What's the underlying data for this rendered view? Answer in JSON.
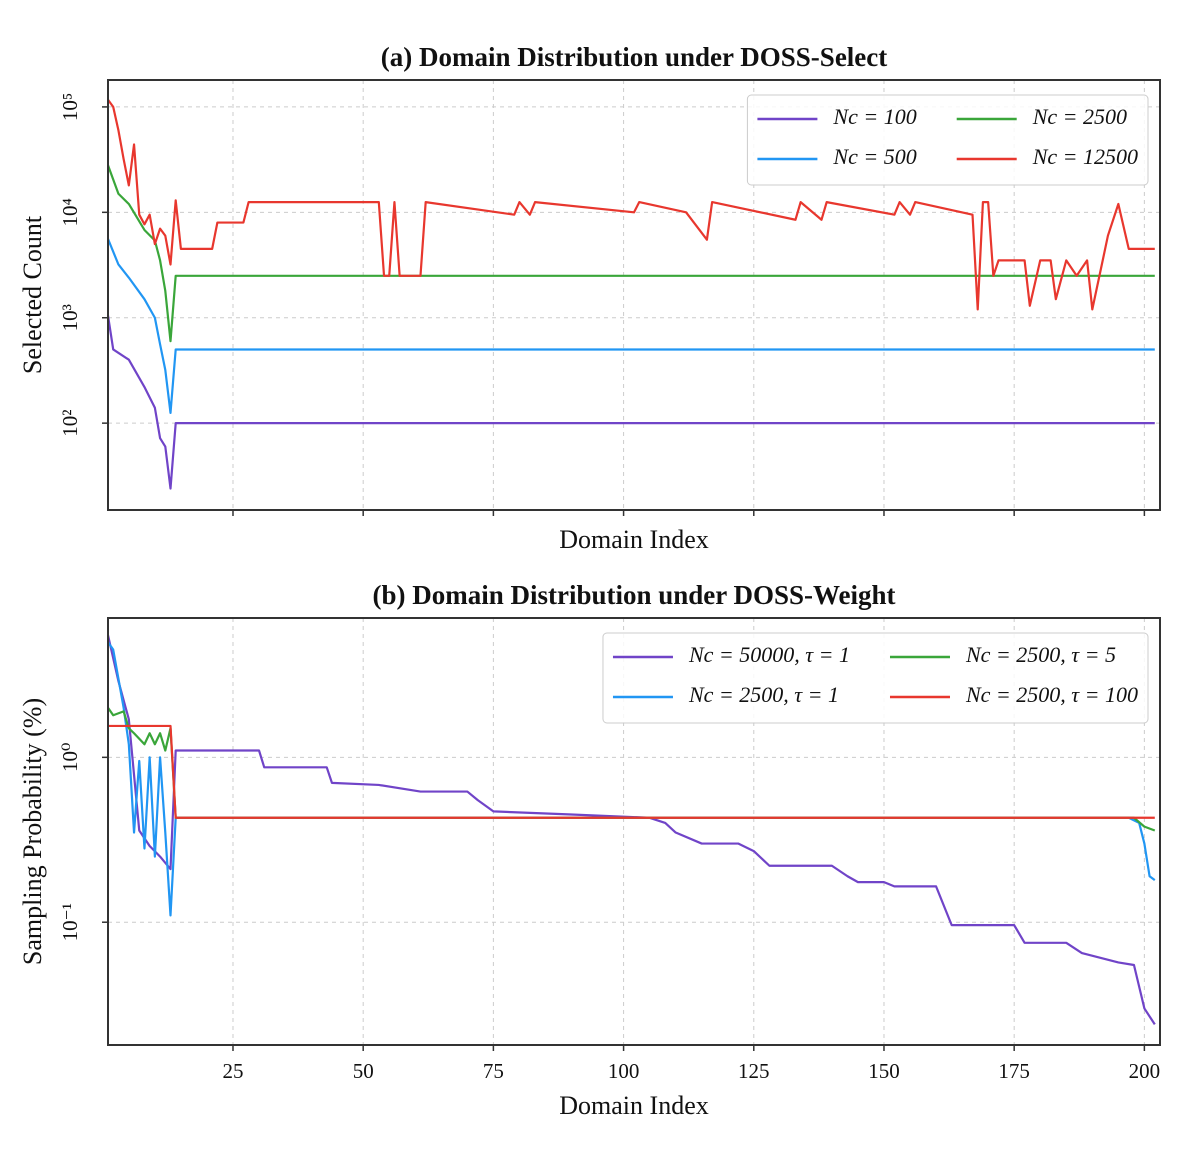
{
  "chart_data": [
    {
      "type": "line",
      "title": "(a) Domain Distribution under DOSS-Select",
      "xlabel": "Domain Index",
      "ylabel": "Selected Count",
      "yscale": "log",
      "grid": true,
      "legend": "upper right",
      "legend_columns": 2,
      "xlim": [
        1,
        203
      ],
      "ylim": [
        15,
        180000
      ],
      "yticks": [
        {
          "value": 100,
          "label": "10²"
        },
        {
          "value": 1000,
          "label": "10³"
        },
        {
          "value": 10000,
          "label": "10⁴"
        },
        {
          "value": 100000,
          "label": "10⁵"
        }
      ],
      "series": [
        {
          "name": "Nc = 100",
          "color": "#7044c8",
          "x": [
            1,
            2,
            5,
            8,
            10,
            11,
            12,
            13,
            14,
            202
          ],
          "values": [
            1050,
            500,
            400,
            220,
            140,
            72,
            60,
            24,
            100,
            100
          ]
        },
        {
          "name": "Nc = 500",
          "color": "#2196f3",
          "x": [
            1,
            3,
            5,
            8,
            10,
            11,
            12,
            13,
            14,
            202
          ],
          "values": [
            5600,
            3200,
            2400,
            1500,
            1000,
            560,
            320,
            125,
            500,
            500
          ]
        },
        {
          "name": "Nc = 2500",
          "color": "#3aa63a",
          "x": [
            1,
            3,
            5,
            8,
            10,
            11,
            12,
            13,
            14,
            202
          ],
          "values": [
            28000,
            15000,
            12000,
            6800,
            5400,
            3500,
            1800,
            600,
            2500,
            2500
          ]
        },
        {
          "name": "Nc = 12500",
          "color": "#e8372e",
          "x": [
            1,
            2,
            3,
            4,
            5,
            6,
            7,
            8,
            9,
            10,
            11,
            12,
            13,
            14,
            15,
            21,
            22,
            27,
            28,
            53,
            54,
            55,
            56,
            57,
            61,
            62,
            79,
            80,
            82,
            83,
            102,
            103,
            112,
            116,
            117,
            133,
            134,
            138,
            139,
            152,
            153,
            155,
            156,
            167,
            168,
            169,
            170,
            171,
            172,
            173,
            177,
            178,
            180,
            182,
            183,
            185,
            187,
            189,
            190,
            192,
            193,
            195,
            197,
            202
          ],
          "values": [
            117000,
            100000,
            60000,
            32000,
            18000,
            44000,
            9500,
            7700,
            9500,
            5000,
            7000,
            6000,
            3200,
            13000,
            4500,
            4500,
            8000,
            8000,
            12500,
            12500,
            2500,
            2500,
            12500,
            2500,
            2500,
            12500,
            9500,
            12500,
            9500,
            12500,
            10000,
            12500,
            10000,
            5500,
            12500,
            8500,
            12500,
            8500,
            12500,
            9500,
            12500,
            9500,
            12500,
            9500,
            1200,
            12500,
            12500,
            2500,
            3500,
            3500,
            3500,
            1300,
            3500,
            3500,
            1500,
            3500,
            2500,
            3500,
            1200,
            3500,
            6000,
            12000,
            4500,
            4500
          ]
        }
      ]
    },
    {
      "type": "line",
      "title": "(b) Domain Distribution under DOSS-Weight",
      "xlabel": "Domain Index",
      "ylabel": "Sampling Probability (%)",
      "yscale": "log",
      "grid": true,
      "legend": "upper right",
      "legend_columns": 2,
      "xlim": [
        1,
        203
      ],
      "ylim": [
        0.018,
        7
      ],
      "xticks": [
        25,
        50,
        75,
        100,
        125,
        150,
        175,
        200
      ],
      "yticks": [
        {
          "value": 0.1,
          "label": "10⁻¹"
        },
        {
          "value": 1,
          "label": "10⁰"
        }
      ],
      "series": [
        {
          "name": "Nc = 50000, τ = 1",
          "color": "#7044c8",
          "x": [
            1,
            3,
            5,
            7,
            9,
            11,
            13,
            14,
            30,
            31,
            43,
            44,
            53,
            61,
            70,
            72,
            75,
            90,
            105,
            108,
            110,
            115,
            122,
            125,
            128,
            140,
            143,
            145,
            150,
            152,
            160,
            163,
            175,
            177,
            185,
            188,
            195,
            198,
            200,
            202
          ],
          "values": [
            5.5,
            2.9,
            1.7,
            0.36,
            0.29,
            0.25,
            0.21,
            1.1,
            1.1,
            0.87,
            0.87,
            0.7,
            0.68,
            0.62,
            0.62,
            0.55,
            0.47,
            0.45,
            0.43,
            0.4,
            0.35,
            0.3,
            0.3,
            0.27,
            0.22,
            0.22,
            0.19,
            0.175,
            0.175,
            0.165,
            0.165,
            0.096,
            0.096,
            0.075,
            0.075,
            0.065,
            0.057,
            0.055,
            0.03,
            0.024
          ]
        },
        {
          "name": "Nc = 2500, τ = 1",
          "color": "#2196f3",
          "x": [
            1,
            2,
            3,
            4,
            5,
            6,
            7,
            8,
            9,
            10,
            11,
            12,
            13,
            14,
            197,
            199,
            200,
            201,
            202
          ],
          "values": [
            5,
            4.5,
            3,
            2,
            1.2,
            0.35,
            0.95,
            0.28,
            1.0,
            0.25,
            1.0,
            0.35,
            0.11,
            0.43,
            0.43,
            0.4,
            0.3,
            0.19,
            0.18
          ]
        },
        {
          "name": "Nc = 2500, τ = 5",
          "color": "#3aa63a",
          "x": [
            1,
            2,
            4,
            5,
            6,
            8,
            9,
            10,
            11,
            12,
            13,
            14,
            198,
            200,
            202
          ],
          "values": [
            2.0,
            1.8,
            1.9,
            1.5,
            1.4,
            1.2,
            1.4,
            1.2,
            1.4,
            1.1,
            1.5,
            0.43,
            0.43,
            0.38,
            0.36
          ]
        },
        {
          "name": "Nc = 2500, τ = 100",
          "color": "#e8372e",
          "x": [
            1,
            13,
            14,
            202
          ],
          "values": [
            1.55,
            1.55,
            0.43,
            0.43
          ]
        }
      ]
    }
  ]
}
